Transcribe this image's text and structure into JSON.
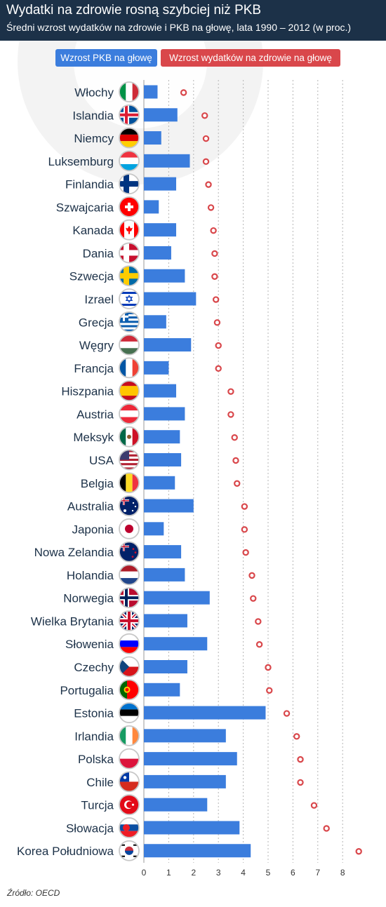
{
  "title": "Wydatki na zdrowie rosną szybciej niż PKB",
  "subtitle": "Średni wzrost wydatków na zdrowie i PKB na głowę, lata 1990 – 2012 (w proc.)",
  "source": "Źródło: OECD",
  "colors": {
    "header": "#1c3148",
    "bar": "#3b7ddd",
    "dot": "#d9474b",
    "grid": "#b5b5b5",
    "label": "#1c3148"
  },
  "chart_data": {
    "type": "bar",
    "orientation": "horizontal",
    "categories": [
      "Włochy",
      "Islandia",
      "Niemcy",
      "Luksemburg",
      "Finlandia",
      "Szwajcaria",
      "Kanada",
      "Dania",
      "Szwecja",
      "Izrael",
      "Grecja",
      "Węgry",
      "Francja",
      "Hiszpania",
      "Austria",
      "Meksyk",
      "USA",
      "Belgia",
      "Australia",
      "Japonia",
      "Nowa Zelandia",
      "Holandia",
      "Norwegia",
      "Wielka Brytania",
      "Słowenia",
      "Czechy",
      "Portugalia",
      "Estonia",
      "Irlandia",
      "Polska",
      "Chile",
      "Turcja",
      "Słowacja",
      "Korea Południowa"
    ],
    "series": [
      {
        "name": "Wzrost PKB na głowę",
        "mark": "bar",
        "values": [
          0.55,
          1.35,
          0.7,
          1.85,
          1.3,
          0.6,
          1.3,
          1.1,
          1.65,
          2.1,
          0.9,
          1.9,
          1.0,
          1.3,
          1.65,
          1.45,
          1.5,
          1.25,
          2.0,
          0.8,
          1.5,
          1.65,
          2.65,
          1.75,
          2.55,
          1.75,
          1.45,
          4.9,
          3.3,
          3.75,
          3.3,
          2.55,
          3.85,
          4.3
        ]
      },
      {
        "name": "Wzrost wydatków na zdrowie na głowę",
        "mark": "dot",
        "values": [
          1.6,
          2.45,
          2.5,
          2.5,
          2.6,
          2.7,
          2.8,
          2.85,
          2.85,
          2.9,
          2.95,
          3.0,
          3.0,
          3.5,
          3.5,
          3.65,
          3.7,
          3.75,
          4.05,
          4.05,
          4.1,
          4.35,
          4.4,
          4.6,
          4.65,
          5.0,
          5.05,
          5.75,
          6.15,
          6.3,
          6.3,
          6.85,
          7.35,
          8.65
        ]
      }
    ],
    "xticks": [
      0,
      1,
      2,
      3,
      4,
      5,
      6,
      7,
      8
    ],
    "xlim": [
      0,
      9
    ],
    "xlabel": "",
    "ylabel": "",
    "grid": "vertical dashed",
    "legend": "top"
  },
  "flags": [
    "italy-flag-icon",
    "iceland-flag-icon",
    "germany-flag-icon",
    "luxembourg-flag-icon",
    "finland-flag-icon",
    "switzerland-flag-icon",
    "canada-flag-icon",
    "denmark-flag-icon",
    "sweden-flag-icon",
    "israel-flag-icon",
    "greece-flag-icon",
    "hungary-flag-icon",
    "france-flag-icon",
    "spain-flag-icon",
    "austria-flag-icon",
    "mexico-flag-icon",
    "usa-flag-icon",
    "belgium-flag-icon",
    "australia-flag-icon",
    "japan-flag-icon",
    "new-zealand-flag-icon",
    "netherlands-flag-icon",
    "norway-flag-icon",
    "uk-flag-icon",
    "slovenia-flag-icon",
    "czechia-flag-icon",
    "portugal-flag-icon",
    "estonia-flag-icon",
    "ireland-flag-icon",
    "poland-flag-icon",
    "chile-flag-icon",
    "turkey-flag-icon",
    "slovakia-flag-icon",
    "south-korea-flag-icon"
  ]
}
